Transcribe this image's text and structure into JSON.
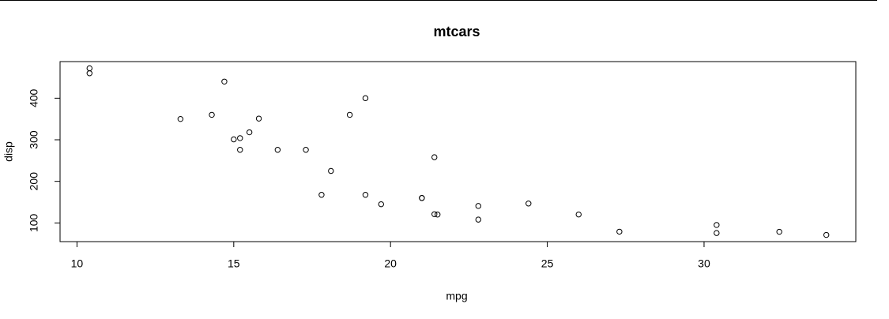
{
  "chart_data": {
    "type": "scatter",
    "title": "mtcars",
    "x_label": "mpg",
    "y_label": "disp",
    "x": [
      21.0,
      21.0,
      22.8,
      21.4,
      18.7,
      18.1,
      14.3,
      24.4,
      22.8,
      19.2,
      17.8,
      16.4,
      17.3,
      15.2,
      10.4,
      10.4,
      14.7,
      32.4,
      30.4,
      33.9,
      21.5,
      15.5,
      15.2,
      13.3,
      19.2,
      27.3,
      26.0,
      30.4,
      15.8,
      19.7,
      15.0,
      21.4
    ],
    "values": [
      160,
      160,
      108,
      258,
      360,
      225,
      360,
      146.7,
      140.8,
      167.6,
      167.6,
      275.8,
      275.8,
      275.8,
      472,
      460,
      440,
      78.7,
      75.7,
      71.1,
      120.1,
      318,
      304,
      350,
      400,
      79,
      120.3,
      95.1,
      351,
      145,
      301,
      121
    ],
    "color": "#000000",
    "xlim": [
      9.46,
      34.84
    ],
    "xticks": [
      10,
      15,
      20,
      25,
      30
    ],
    "ylim": [
      55.06,
      488.04
    ],
    "yticks": [
      100,
      200,
      300,
      400
    ]
  }
}
